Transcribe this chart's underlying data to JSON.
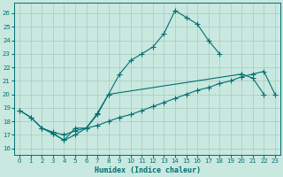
{
  "xlabel": "Humidex (Indice chaleur)",
  "xlim": [
    -0.5,
    23.5
  ],
  "ylim": [
    15.5,
    26.8
  ],
  "yticks": [
    16,
    17,
    18,
    19,
    20,
    21,
    22,
    23,
    24,
    25,
    26
  ],
  "xticks": [
    0,
    1,
    2,
    3,
    4,
    5,
    6,
    7,
    8,
    9,
    10,
    11,
    12,
    13,
    14,
    15,
    16,
    17,
    18,
    19,
    20,
    21,
    22,
    23
  ],
  "bg_color": "#c8e8e0",
  "grid_color": "#a8c8c0",
  "line_color": "#007070",
  "line1_x": [
    0,
    1,
    2,
    3,
    4,
    5,
    6,
    7,
    8,
    9,
    10,
    11,
    12,
    13,
    14,
    15,
    16,
    17,
    18
  ],
  "line1_y": [
    18.8,
    18.3,
    17.5,
    17.1,
    16.6,
    17.5,
    17.5,
    18.6,
    20.0,
    21.5,
    22.5,
    23.0,
    23.5,
    24.5,
    26.2,
    25.7,
    25.2,
    24.0,
    23.0
  ],
  "line2_x": [
    2,
    3,
    4,
    5,
    6,
    7,
    8,
    20,
    21,
    22
  ],
  "line2_y": [
    17.5,
    17.1,
    16.6,
    17.0,
    17.5,
    18.5,
    20.0,
    21.5,
    21.2,
    20.0
  ],
  "line3_x": [
    0,
    1,
    2,
    3,
    4,
    5,
    6,
    7,
    8,
    9,
    10,
    11,
    12,
    13,
    14,
    15,
    16,
    17,
    18,
    19,
    20,
    21,
    22,
    23
  ],
  "line3_y": [
    18.8,
    18.3,
    17.5,
    17.2,
    17.0,
    17.3,
    17.5,
    17.7,
    18.0,
    18.3,
    18.5,
    18.8,
    19.1,
    19.4,
    19.7,
    20.0,
    20.3,
    20.5,
    20.8,
    21.0,
    21.3,
    21.5,
    21.7,
    20.0
  ]
}
